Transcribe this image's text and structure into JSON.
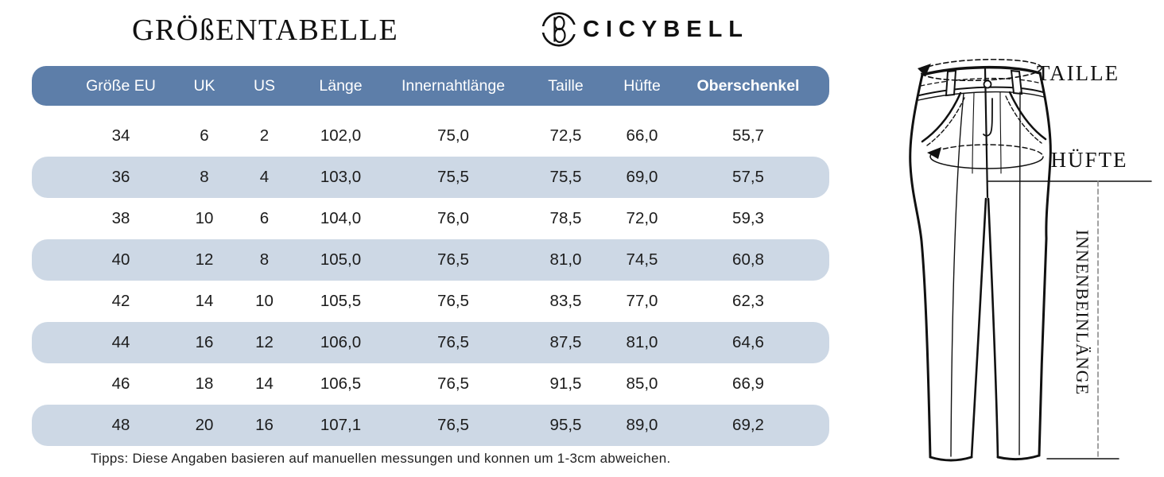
{
  "header": {
    "title": "GRÖßENTABELLE",
    "brand": "CICYBELL",
    "logo_icon": "circle-b-monogram-icon"
  },
  "colors": {
    "header_bg": "#5D7EA9",
    "header_text": "#FFFFFF",
    "stripe_bg": "#CDD8E5",
    "text": "#1A1A1A",
    "line": "#111111",
    "dash_gray": "#8A8A8A"
  },
  "table": {
    "columns": [
      "Größe EU",
      "UK",
      "US",
      "Länge",
      "Innernahtlänge",
      "Taille",
      "Hüfte",
      "Oberschenkel"
    ],
    "rows": [
      [
        "34",
        "6",
        "2",
        "102,0",
        "75,0",
        "72,5",
        "66,0",
        "55,7"
      ],
      [
        "36",
        "8",
        "4",
        "103,0",
        "75,5",
        "75,5",
        "69,0",
        "57,5"
      ],
      [
        "38",
        "10",
        "6",
        "104,0",
        "76,0",
        "78,5",
        "72,0",
        "59,3"
      ],
      [
        "40",
        "12",
        "8",
        "105,0",
        "76,5",
        "81,0",
        "74,5",
        "60,8"
      ],
      [
        "42",
        "14",
        "10",
        "105,5",
        "76,5",
        "83,5",
        "77,0",
        "62,3"
      ],
      [
        "44",
        "16",
        "12",
        "106,0",
        "76,5",
        "87,5",
        "81,0",
        "64,6"
      ],
      [
        "46",
        "18",
        "14",
        "106,5",
        "76,5",
        "91,5",
        "85,0",
        "66,9"
      ],
      [
        "48",
        "20",
        "16",
        "107,1",
        "76,5",
        "95,5",
        "89,0",
        "69,2"
      ]
    ]
  },
  "diagram": {
    "waist_label": "TAILLE",
    "hip_label": "HÜFTE",
    "inseam_label": "INNENBEINLÄNGE"
  },
  "footer": {
    "tips": "Tipps: Diese Angaben basieren auf manuellen messungen und konnen um 1-3cm abweichen."
  },
  "chart_data": {
    "type": "table",
    "title": "GRÖßENTABELLE",
    "columns": [
      "Größe EU",
      "UK",
      "US",
      "Länge",
      "Innernahtlänge",
      "Taille",
      "Hüfte",
      "Oberschenkel"
    ],
    "rows": [
      [
        "34",
        "6",
        "2",
        "102,0",
        "75,0",
        "72,5",
        "66,0",
        "55,7"
      ],
      [
        "36",
        "8",
        "4",
        "103,0",
        "75,5",
        "75,5",
        "69,0",
        "57,5"
      ],
      [
        "38",
        "10",
        "6",
        "104,0",
        "76,0",
        "78,5",
        "72,0",
        "59,3"
      ],
      [
        "40",
        "12",
        "8",
        "105,0",
        "76,5",
        "81,0",
        "74,5",
        "60,8"
      ],
      [
        "42",
        "14",
        "10",
        "105,5",
        "76,5",
        "83,5",
        "77,0",
        "62,3"
      ],
      [
        "44",
        "16",
        "12",
        "106,0",
        "76,5",
        "87,5",
        "81,0",
        "64,6"
      ],
      [
        "46",
        "18",
        "14",
        "106,5",
        "76,5",
        "91,5",
        "85,0",
        "66,9"
      ],
      [
        "48",
        "20",
        "16",
        "107,1",
        "76,5",
        "95,5",
        "89,0",
        "69,2"
      ]
    ],
    "annotations": [
      "TAILLE",
      "HÜFTE",
      "INNENBEINLÄNGE"
    ],
    "note": "Tipps: Diese Angaben basieren auf manuellen messungen und konnen um 1-3cm abweichen."
  }
}
